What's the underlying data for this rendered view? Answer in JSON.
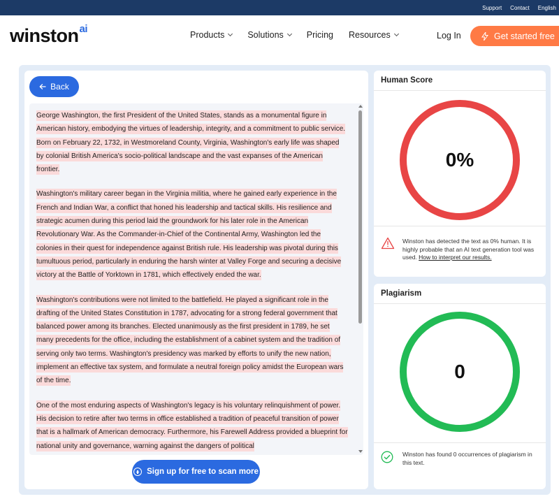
{
  "topbar": {
    "links": [
      "Support",
      "Contact",
      "English"
    ]
  },
  "brand": {
    "name": "winston",
    "suffix": "ai"
  },
  "nav": {
    "items": [
      {
        "label": "Products",
        "dropdown": true
      },
      {
        "label": "Solutions",
        "dropdown": true
      },
      {
        "label": "Pricing",
        "dropdown": false
      },
      {
        "label": "Resources",
        "dropdown": true
      }
    ],
    "login": "Log In",
    "cta": "Get started free"
  },
  "editor": {
    "back_label": "Back",
    "paragraphs": [
      "George Washington, the first President of the United States, stands as a monumental figure in American history, embodying the virtues of leadership, integrity, and a commitment to public service. Born on February 22, 1732, in Westmoreland County, Virginia, Washington's early life was shaped by colonial British America's socio-political landscape and the vast expanses of the American frontier.",
      "Washington's military career began in the Virginia militia, where he gained early experience in the French and Indian War, a conflict that honed his leadership and tactical skills. His resilience and strategic acumen during this period laid the groundwork for his later role in the American Revolutionary War. As the Commander-in-Chief of the Continental Army, Washington led the colonies in their quest for independence against British rule. His leadership was pivotal during this tumultuous period, particularly in enduring the harsh winter at Valley Forge and securing a decisive victory at the Battle of Yorktown in 1781, which effectively ended the war.",
      "Washington's contributions were not limited to the battlefield. He played a significant role in the drafting of the United States Constitution in 1787, advocating for a strong federal government that balanced power among its branches. Elected unanimously as the first president in 1789, he set many precedents for the office, including the establishment of a cabinet system and the tradition of serving only two terms. Washington's presidency was marked by efforts to unify the new nation, implement an effective tax system, and formulate a neutral foreign policy amidst the European wars of the time.",
      "One of the most enduring aspects of Washington's legacy is his voluntary relinquishment of power. His decision to retire after two terms in office established a tradition of peaceful transition of power that is a hallmark of American democracy. Furthermore, his Farewell Address provided a blueprint for national unity and governance, warning against the dangers of political"
    ],
    "signup_label": "Sign up for free to scan more"
  },
  "human_score": {
    "title": "Human Score",
    "value": "0%",
    "percent": 0,
    "ring_color": "#e84545",
    "note": "Winston has detected the text as 0% human. It is highly probable that an AI text generation tool was used.",
    "note_link": "How to interpret our results."
  },
  "plagiarism": {
    "title": "Plagiarism",
    "value": "0",
    "ring_color": "#22bb55",
    "note": "Winston has found 0 occurrences of plagiarism in this text."
  },
  "colors": {
    "primary": "#2b6ae0",
    "cta": "#ff7a45",
    "topbar": "#1c3a66",
    "highlight": "#fbdada"
  }
}
